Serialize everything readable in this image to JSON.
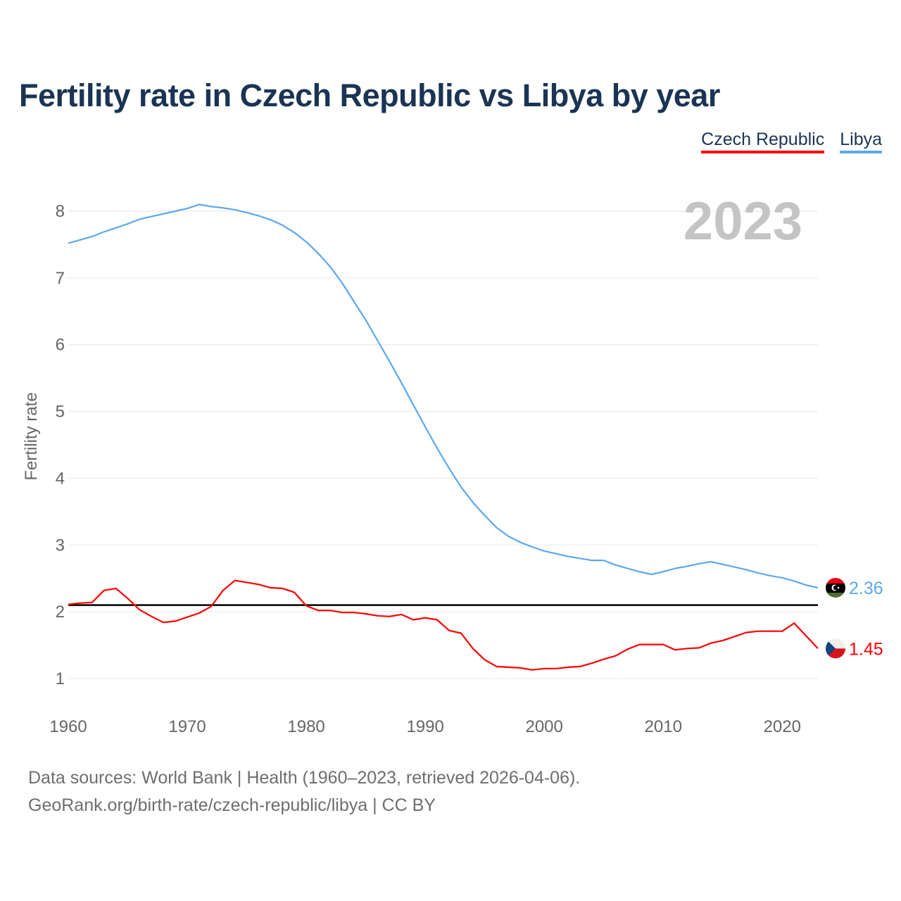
{
  "chart_data": {
    "type": "line",
    "title": "Fertility rate in Czech Republic vs Libya by year",
    "xlabel": "",
    "ylabel": "Fertility rate",
    "xlim": [
      1960,
      2023
    ],
    "ylim": [
      1,
      8
    ],
    "xticks": [
      1960,
      1970,
      1980,
      1990,
      2000,
      2010,
      2020
    ],
    "yticks": [
      1,
      2,
      3,
      4,
      5,
      6,
      7,
      8
    ],
    "current_year_label": "2023",
    "reference_line": 2.1,
    "legend_position": "top-right",
    "x": [
      1960,
      1961,
      1962,
      1963,
      1964,
      1965,
      1966,
      1967,
      1968,
      1969,
      1970,
      1971,
      1972,
      1973,
      1974,
      1975,
      1976,
      1977,
      1978,
      1979,
      1980,
      1981,
      1982,
      1983,
      1984,
      1985,
      1986,
      1987,
      1988,
      1989,
      1990,
      1991,
      1992,
      1993,
      1994,
      1995,
      1996,
      1997,
      1998,
      1999,
      2000,
      2001,
      2002,
      2003,
      2004,
      2005,
      2006,
      2007,
      2008,
      2009,
      2010,
      2011,
      2012,
      2013,
      2014,
      2015,
      2016,
      2017,
      2018,
      2019,
      2020,
      2021,
      2022,
      2023
    ],
    "series": [
      {
        "name": "Czech Republic",
        "color": "#ff0000",
        "end_label": "1.45",
        "values": [
          2.11,
          2.13,
          2.14,
          2.32,
          2.35,
          2.2,
          2.03,
          1.93,
          1.84,
          1.86,
          1.92,
          1.98,
          2.08,
          2.32,
          2.47,
          2.44,
          2.41,
          2.36,
          2.35,
          2.29,
          2.09,
          2.02,
          2.02,
          1.99,
          1.99,
          1.97,
          1.94,
          1.93,
          1.96,
          1.88,
          1.91,
          1.88,
          1.72,
          1.68,
          1.45,
          1.28,
          1.18,
          1.17,
          1.16,
          1.13,
          1.15,
          1.15,
          1.17,
          1.18,
          1.23,
          1.29,
          1.34,
          1.44,
          1.51,
          1.51,
          1.51,
          1.43,
          1.45,
          1.46,
          1.53,
          1.57,
          1.63,
          1.69,
          1.71,
          1.71,
          1.71,
          1.83,
          1.64,
          1.45
        ]
      },
      {
        "name": "Libya",
        "color": "#5ba8ee",
        "end_label": "2.36",
        "values": [
          7.52,
          7.57,
          7.62,
          7.69,
          7.75,
          7.81,
          7.88,
          7.92,
          7.96,
          8.0,
          8.04,
          8.1,
          8.07,
          8.05,
          8.02,
          7.98,
          7.93,
          7.87,
          7.79,
          7.68,
          7.54,
          7.37,
          7.17,
          6.93,
          6.65,
          6.37,
          6.06,
          5.75,
          5.43,
          5.1,
          4.77,
          4.45,
          4.15,
          3.87,
          3.64,
          3.44,
          3.26,
          3.13,
          3.04,
          2.97,
          2.91,
          2.87,
          2.83,
          2.8,
          2.77,
          2.77,
          2.7,
          2.65,
          2.6,
          2.56,
          2.6,
          2.65,
          2.68,
          2.72,
          2.75,
          2.71,
          2.67,
          2.63,
          2.58,
          2.54,
          2.51,
          2.46,
          2.4,
          2.36
        ]
      }
    ]
  },
  "footer": {
    "line1": "Data sources: World Bank | Health (1960–2023, retrieved 2026-04-06).",
    "line2": "GeoRank.org/birth-rate/czech-republic/libya | CC BY"
  }
}
